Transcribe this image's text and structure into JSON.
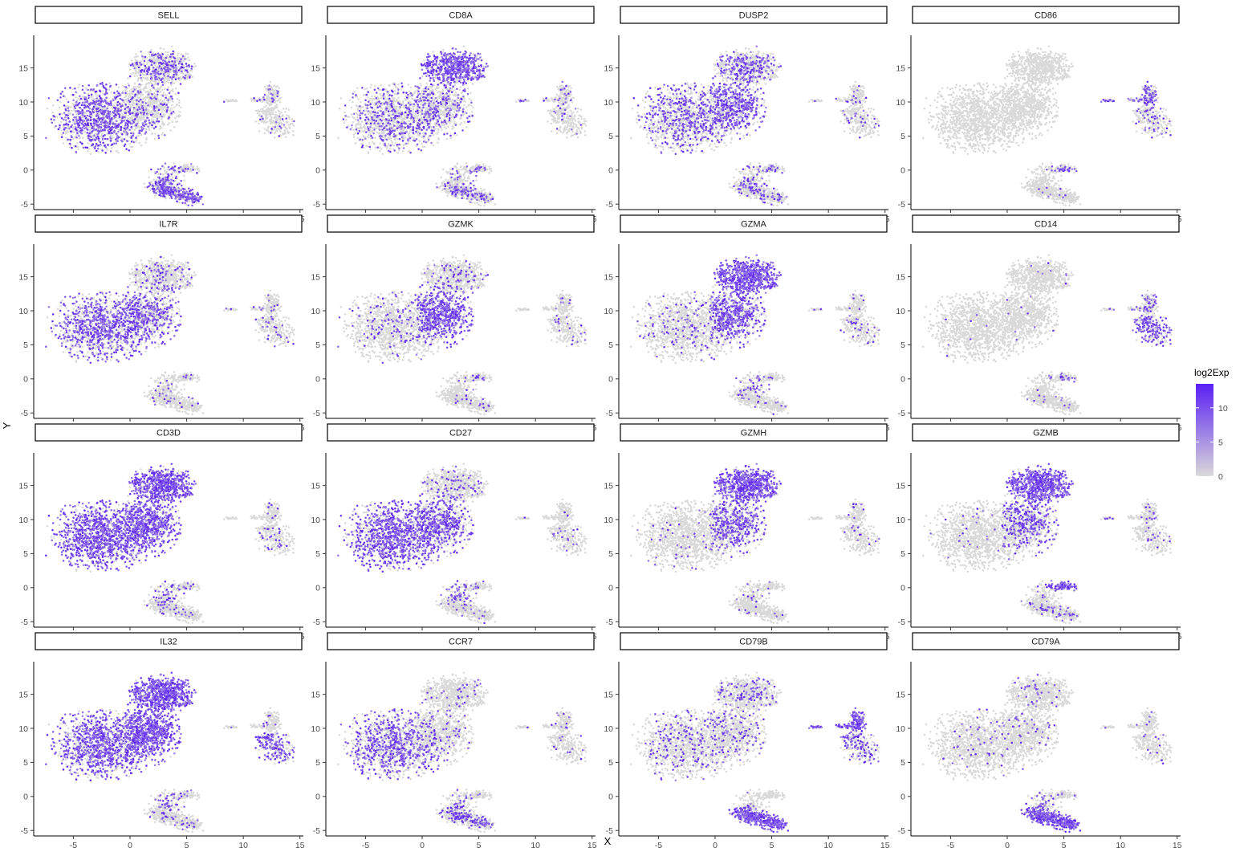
{
  "chart_data": {
    "type": "scatter",
    "xlabel": "X",
    "ylabel": "Y",
    "xlim": [
      -8.5,
      15.3
    ],
    "ylim": [
      -5.8,
      19.2
    ],
    "x_ticks": [
      -5,
      0,
      5,
      10,
      15
    ],
    "y_ticks": [
      -5,
      0,
      5,
      10,
      15
    ],
    "x_tick_labels": [
      "-5",
      "0",
      "5",
      "10",
      "15"
    ],
    "y_tick_labels": [
      "-5",
      "0",
      "5",
      "10",
      "15"
    ],
    "legend": {
      "title": "log2Exp",
      "placement": "right",
      "range": [
        0,
        13.5
      ],
      "ticks": [
        0,
        5,
        10
      ],
      "tick_labels": [
        "0",
        "5",
        "10"
      ],
      "low_color": "#d9d9d9",
      "high_color": "#5a1ff5"
    },
    "layout": {
      "rows": 4,
      "cols": 4
    },
    "panels": [
      {
        "gene": "SELL",
        "level": "moderate",
        "regions": {
          "A": 0.55,
          "B": 0.15,
          "C": 0.3,
          "D": 0.1,
          "E": 0.05,
          "F": 0.2,
          "G": 0.55,
          "H": 0.5
        }
      },
      {
        "gene": "CD8A",
        "level": "moderate",
        "regions": {
          "A": 0.28,
          "B": 0.3,
          "C": 0.75,
          "D": 0.12,
          "E": 0.05,
          "F": 0.12,
          "G": 0.2,
          "H": 0.15
        }
      },
      {
        "gene": "DUSP2",
        "level": "moderate",
        "regions": {
          "A": 0.35,
          "B": 0.6,
          "C": 0.3,
          "D": 0.1,
          "E": 0.08,
          "F": 0.25,
          "G": 0.2,
          "H": 0.15
        }
      },
      {
        "gene": "CD86",
        "level": "low",
        "regions": {
          "A": 0.0,
          "B": 0.0,
          "C": 0.0,
          "D": 0.45,
          "E": 0.15,
          "F": 0.25,
          "G": 0.02,
          "H": 0.0
        }
      },
      {
        "gene": "IL7R",
        "level": "moderate",
        "regions": {
          "A": 0.55,
          "B": 0.4,
          "C": 0.1,
          "D": 0.05,
          "E": 0.1,
          "F": 0.05,
          "G": 0.05,
          "H": 0.1
        }
      },
      {
        "gene": "GZMK",
        "level": "moderate",
        "regions": {
          "A": 0.1,
          "B": 0.8,
          "C": 0.1,
          "D": 0.05,
          "E": 0.1,
          "F": 0.05,
          "G": 0.05,
          "H": 0.05
        }
      },
      {
        "gene": "GZMA",
        "level": "high",
        "regions": {
          "A": 0.1,
          "B": 0.65,
          "C": 0.95,
          "D": 0.05,
          "E": 0.1,
          "F": 0.05,
          "G": 0.05,
          "H": 0.2
        }
      },
      {
        "gene": "CD14",
        "level": "low",
        "regions": {
          "A": 0.01,
          "B": 0.01,
          "C": 0.01,
          "D": 0.25,
          "E": 0.6,
          "F": 0.3,
          "G": 0.02,
          "H": 0.02
        }
      },
      {
        "gene": "CD3D",
        "level": "high",
        "regions": {
          "A": 0.8,
          "B": 0.8,
          "C": 0.85,
          "D": 0.05,
          "E": 0.15,
          "F": 0.1,
          "G": 0.05,
          "H": 0.3
        }
      },
      {
        "gene": "CD27",
        "level": "moderate",
        "regions": {
          "A": 0.7,
          "B": 0.55,
          "C": 0.1,
          "D": 0.05,
          "E": 0.1,
          "F": 0.1,
          "G": 0.05,
          "H": 0.35
        }
      },
      {
        "gene": "GZMH",
        "level": "high",
        "regions": {
          "A": 0.03,
          "B": 0.55,
          "C": 0.9,
          "D": 0.05,
          "E": 0.05,
          "F": 0.05,
          "G": 0.02,
          "H": 0.1
        }
      },
      {
        "gene": "GZMB",
        "level": "high",
        "regions": {
          "A": 0.03,
          "B": 0.45,
          "C": 0.95,
          "D": 0.05,
          "E": 0.05,
          "F": 0.9,
          "G": 0.1,
          "H": 0.1
        }
      },
      {
        "gene": "IL32",
        "level": "high",
        "regions": {
          "A": 0.65,
          "B": 0.95,
          "C": 0.95,
          "D": 0.05,
          "E": 0.6,
          "F": 0.1,
          "G": 0.05,
          "H": 0.3
        }
      },
      {
        "gene": "CCR7",
        "level": "moderate",
        "regions": {
          "A": 0.45,
          "B": 0.08,
          "C": 0.05,
          "D": 0.05,
          "E": 0.05,
          "F": 0.05,
          "G": 0.25,
          "H": 0.25
        }
      },
      {
        "gene": "CD79B",
        "level": "high",
        "regions": {
          "A": 0.15,
          "B": 0.15,
          "C": 0.15,
          "D": 0.85,
          "E": 0.4,
          "F": 0.05,
          "G": 0.95,
          "H": 0.05
        }
      },
      {
        "gene": "CD79A",
        "level": "high",
        "regions": {
          "A": 0.05,
          "B": 0.05,
          "C": 0.05,
          "D": 0.05,
          "E": 0.05,
          "F": 0.05,
          "G": 0.95,
          "H": 0.1
        }
      }
    ]
  }
}
